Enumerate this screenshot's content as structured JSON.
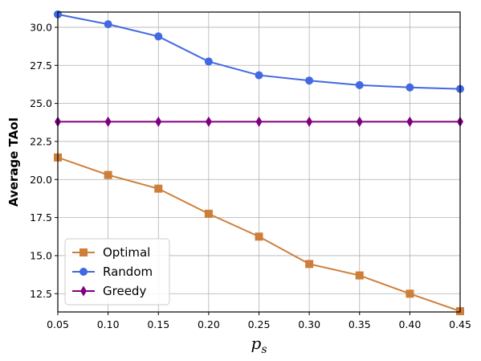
{
  "chart_data": {
    "type": "line",
    "title": "",
    "xlabel": "p",
    "xlabel_subscript": "s",
    "ylabel": "Average TAoI",
    "x": [
      0.05,
      0.1,
      0.15,
      0.2,
      0.25,
      0.3,
      0.35,
      0.4,
      0.45
    ],
    "xticks": [
      "0.05",
      "0.10",
      "0.15",
      "0.20",
      "0.25",
      "0.30",
      "0.35",
      "0.40",
      "0.45"
    ],
    "yticks": [
      "12.5",
      "15.0",
      "17.5",
      "20.0",
      "22.5",
      "25.0",
      "27.5",
      "30.0"
    ],
    "ytick_values": [
      12.5,
      15.0,
      17.5,
      20.0,
      22.5,
      25.0,
      27.5,
      30.0
    ],
    "xlim": [
      0.05,
      0.45
    ],
    "ylim": [
      11.3,
      31.0
    ],
    "grid": true,
    "legend_position": "lower-left",
    "series": [
      {
        "name": "Optimal",
        "color": "#cd7f3a",
        "marker": "square",
        "values": [
          21.45,
          20.3,
          19.4,
          17.75,
          16.25,
          14.45,
          13.7,
          12.5,
          11.35
        ]
      },
      {
        "name": "Random",
        "color": "#4169e1",
        "marker": "circle",
        "values": [
          30.85,
          30.2,
          29.4,
          27.75,
          26.85,
          26.5,
          26.2,
          26.05,
          25.95
        ]
      },
      {
        "name": "Greedy",
        "color": "#800080",
        "marker": "diamond",
        "values": [
          23.8,
          23.8,
          23.8,
          23.8,
          23.8,
          23.8,
          23.8,
          23.8,
          23.8
        ]
      }
    ]
  }
}
